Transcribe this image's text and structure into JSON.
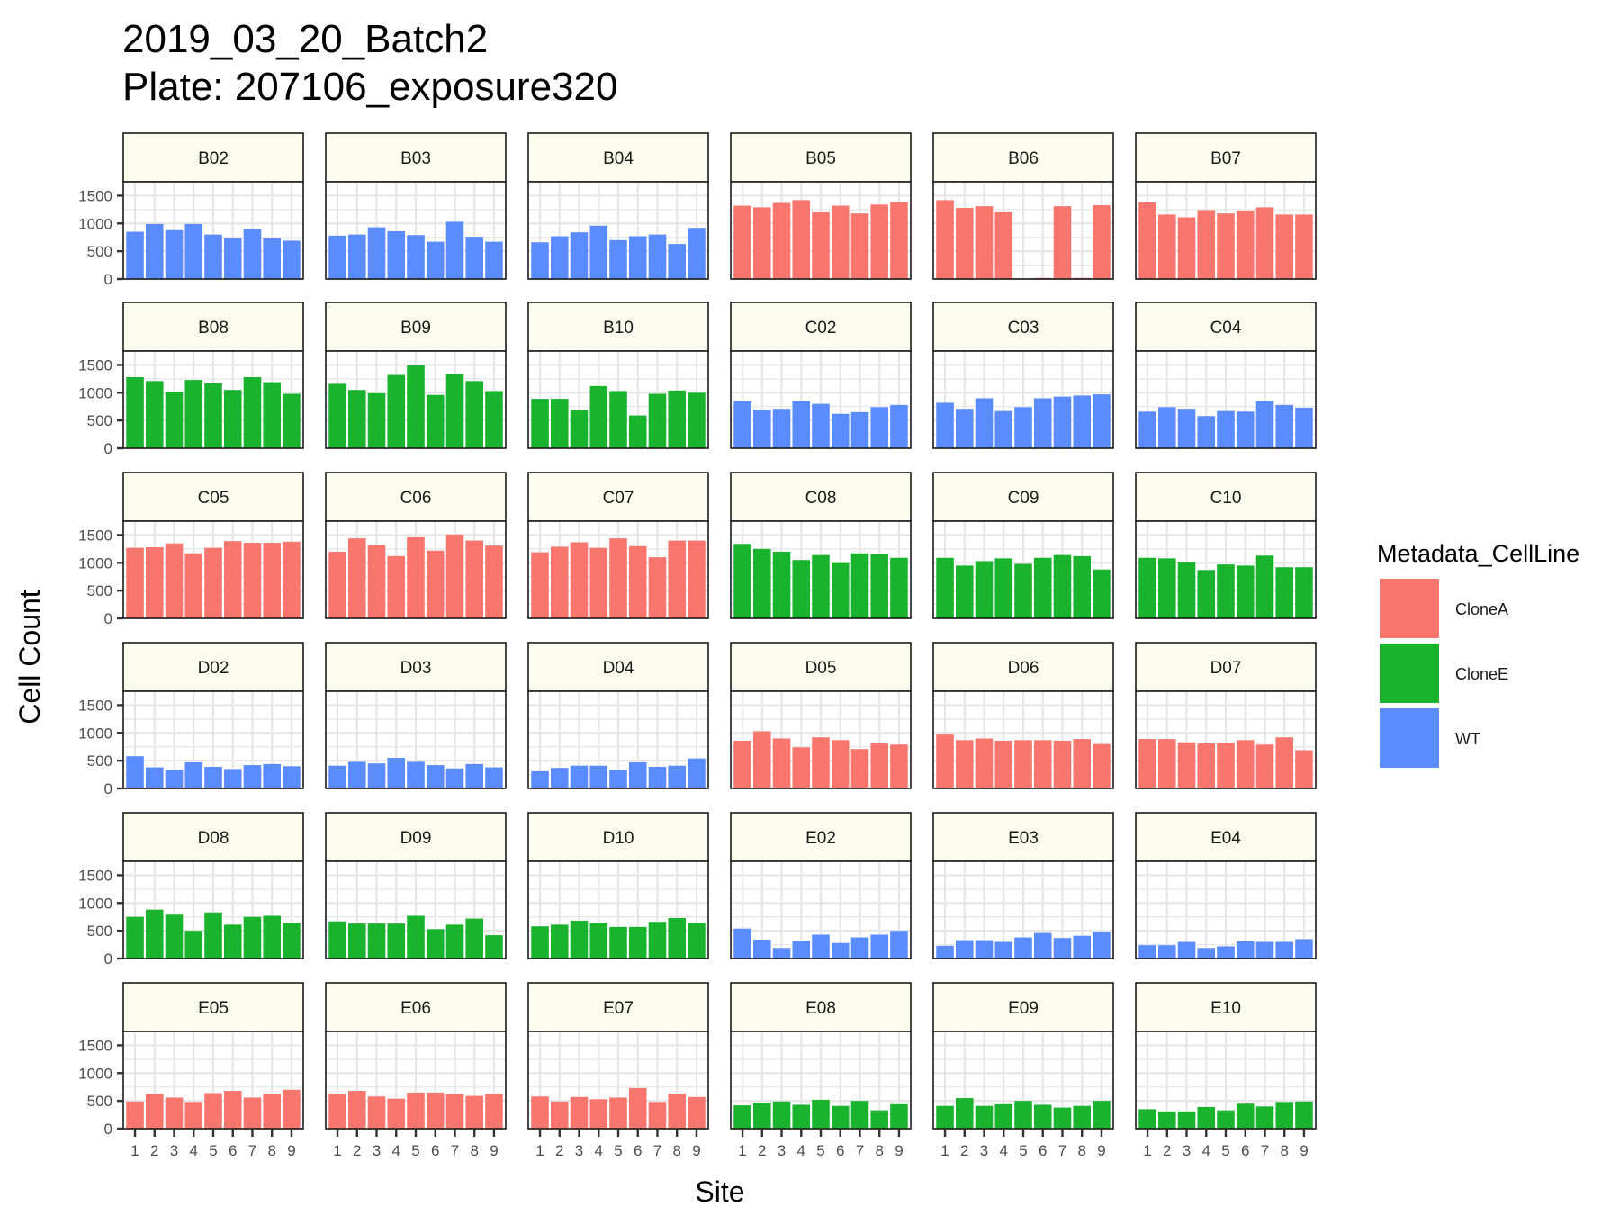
{
  "chart_data": {
    "type": "bar",
    "title_line1": "2019_03_20_Batch2",
    "title_line2": "Plate: 207106_exposure320",
    "xlabel": "Site",
    "ylabel": "Cell Count",
    "ylim": [
      0,
      1750
    ],
    "yticks": [
      0,
      500,
      1000,
      1500
    ],
    "x": [
      1,
      2,
      3,
      4,
      5,
      6,
      7,
      8,
      9
    ],
    "grid": true,
    "facet_layout": {
      "rows": 6,
      "cols": 6
    },
    "legend": {
      "title": "Metadata_CellLine",
      "placement": "right",
      "items": [
        {
          "name": "CloneA",
          "color": "#F8766D"
        },
        {
          "name": "CloneE",
          "color": "#19B32E"
        },
        {
          "name": "WT",
          "color": "#5B8CFF"
        }
      ]
    },
    "strip_color": "#FCFCEE",
    "panels": [
      {
        "well": "B02",
        "line": "WT",
        "values": [
          850,
          990,
          880,
          990,
          800,
          740,
          900,
          730,
          690
        ]
      },
      {
        "well": "B03",
        "line": "WT",
        "values": [
          780,
          800,
          930,
          860,
          790,
          670,
          1030,
          760,
          670
        ]
      },
      {
        "well": "B04",
        "line": "WT",
        "values": [
          660,
          770,
          840,
          960,
          700,
          770,
          800,
          630,
          920
        ]
      },
      {
        "well": "B05",
        "line": "CloneA",
        "values": [
          1320,
          1290,
          1370,
          1420,
          1200,
          1320,
          1180,
          1340,
          1390
        ]
      },
      {
        "well": "B06",
        "line": "CloneA",
        "values": [
          1420,
          1280,
          1310,
          1200,
          10,
          20,
          1310,
          20,
          1330
        ]
      },
      {
        "well": "B07",
        "line": "CloneA",
        "values": [
          1380,
          1160,
          1110,
          1240,
          1180,
          1230,
          1290,
          1160,
          1160
        ]
      },
      {
        "well": "B08",
        "line": "CloneE",
        "values": [
          1280,
          1210,
          1020,
          1230,
          1170,
          1050,
          1280,
          1190,
          980
        ]
      },
      {
        "well": "B09",
        "line": "CloneE",
        "values": [
          1160,
          1050,
          990,
          1320,
          1490,
          960,
          1330,
          1210,
          1030
        ]
      },
      {
        "well": "B10",
        "line": "CloneE",
        "values": [
          890,
          890,
          680,
          1120,
          1030,
          590,
          980,
          1040,
          1000
        ]
      },
      {
        "well": "C02",
        "line": "WT",
        "values": [
          850,
          690,
          710,
          850,
          800,
          620,
          650,
          740,
          780
        ]
      },
      {
        "well": "C03",
        "line": "WT",
        "values": [
          820,
          710,
          900,
          670,
          740,
          900,
          930,
          950,
          970
        ]
      },
      {
        "well": "C04",
        "line": "WT",
        "values": [
          660,
          740,
          710,
          580,
          670,
          660,
          850,
          780,
          730
        ]
      },
      {
        "well": "C05",
        "line": "CloneA",
        "values": [
          1270,
          1280,
          1350,
          1170,
          1270,
          1390,
          1360,
          1360,
          1380
        ]
      },
      {
        "well": "C06",
        "line": "CloneA",
        "values": [
          1200,
          1440,
          1320,
          1120,
          1460,
          1220,
          1510,
          1400,
          1310
        ]
      },
      {
        "well": "C07",
        "line": "CloneA",
        "values": [
          1190,
          1290,
          1370,
          1270,
          1440,
          1300,
          1100,
          1400,
          1400
        ]
      },
      {
        "well": "C08",
        "line": "CloneE",
        "values": [
          1340,
          1250,
          1200,
          1050,
          1140,
          1010,
          1170,
          1150,
          1090
        ]
      },
      {
        "well": "C09",
        "line": "CloneE",
        "values": [
          1090,
          950,
          1030,
          1080,
          980,
          1090,
          1140,
          1120,
          880
        ]
      },
      {
        "well": "C10",
        "line": "CloneE",
        "values": [
          1090,
          1080,
          1020,
          870,
          970,
          950,
          1130,
          920,
          920
        ]
      },
      {
        "well": "D02",
        "line": "WT",
        "values": [
          580,
          380,
          330,
          470,
          390,
          350,
          420,
          440,
          400
        ]
      },
      {
        "well": "D03",
        "line": "WT",
        "values": [
          410,
          480,
          450,
          550,
          480,
          420,
          360,
          440,
          380
        ]
      },
      {
        "well": "D04",
        "line": "WT",
        "values": [
          310,
          370,
          410,
          410,
          330,
          470,
          390,
          410,
          540
        ]
      },
      {
        "well": "D05",
        "line": "CloneA",
        "values": [
          860,
          1030,
          900,
          740,
          920,
          870,
          710,
          810,
          790
        ]
      },
      {
        "well": "D06",
        "line": "CloneA",
        "values": [
          970,
          870,
          900,
          860,
          870,
          870,
          860,
          890,
          800
        ]
      },
      {
        "well": "D07",
        "line": "CloneA",
        "values": [
          890,
          890,
          830,
          810,
          820,
          870,
          790,
          920,
          690
        ]
      },
      {
        "well": "D08",
        "line": "CloneE",
        "values": [
          750,
          880,
          790,
          500,
          830,
          610,
          750,
          770,
          640
        ]
      },
      {
        "well": "D09",
        "line": "CloneE",
        "values": [
          670,
          630,
          630,
          630,
          770,
          530,
          610,
          720,
          420
        ]
      },
      {
        "well": "D10",
        "line": "CloneE",
        "values": [
          580,
          610,
          680,
          640,
          570,
          570,
          660,
          730,
          640
        ]
      },
      {
        "well": "E02",
        "line": "WT",
        "values": [
          540,
          340,
          190,
          320,
          430,
          280,
          380,
          430,
          500
        ]
      },
      {
        "well": "E03",
        "line": "WT",
        "values": [
          230,
          330,
          330,
          300,
          380,
          460,
          370,
          410,
          480
        ]
      },
      {
        "well": "E04",
        "line": "WT",
        "values": [
          240,
          240,
          300,
          190,
          220,
          310,
          300,
          300,
          350
        ]
      },
      {
        "well": "E05",
        "line": "CloneA",
        "values": [
          490,
          620,
          560,
          480,
          640,
          680,
          560,
          630,
          700
        ]
      },
      {
        "well": "E06",
        "line": "CloneA",
        "values": [
          630,
          680,
          580,
          540,
          650,
          650,
          620,
          590,
          620
        ]
      },
      {
        "well": "E07",
        "line": "CloneA",
        "values": [
          580,
          490,
          570,
          530,
          560,
          730,
          480,
          630,
          570
        ]
      },
      {
        "well": "E08",
        "line": "CloneE",
        "values": [
          420,
          470,
          490,
          430,
          520,
          410,
          500,
          330,
          440
        ]
      },
      {
        "well": "E09",
        "line": "CloneE",
        "values": [
          410,
          550,
          410,
          440,
          500,
          430,
          380,
          410,
          500
        ]
      },
      {
        "well": "E10",
        "line": "CloneE",
        "values": [
          350,
          310,
          310,
          390,
          330,
          450,
          400,
          480,
          490
        ]
      }
    ]
  }
}
